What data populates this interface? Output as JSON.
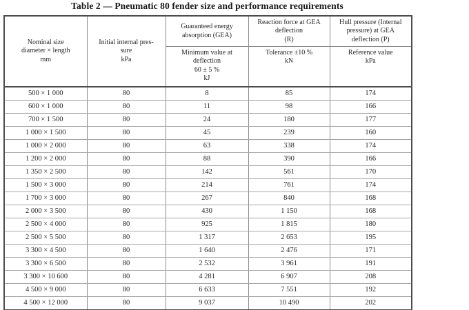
{
  "title": "Table 2 — Pneumatic 80 fender size and performance requirements",
  "table": {
    "header": {
      "nominal_size": "Nominal size\ndiameter × length\nmm",
      "initial_pressure": "Initial internal pres-\nsure\nkPa",
      "gea_group": "Guaranteed energy\nabsorption (GEA)",
      "gea_sub": "Minimum value at\ndeflection\n60 ± 5 %\nkJ",
      "reaction_group": "Reaction force at GEA\ndeflection\n(R)",
      "reaction_sub": "Tolerance ±10 %\nkN",
      "hull_group": "Hull pressure (Internal\npressure) at GEA\ndeflection (P)",
      "hull_sub": "Reference value\nkPa"
    },
    "rows": [
      [
        "500 × 1 000",
        "80",
        "8",
        "85",
        "174"
      ],
      [
        "600 × 1 000",
        "80",
        "11",
        "98",
        "166"
      ],
      [
        "700 × 1 500",
        "80",
        "24",
        "180",
        "177"
      ],
      [
        "1 000 × 1 500",
        "80",
        "45",
        "239",
        "160"
      ],
      [
        "1 000 × 2 000",
        "80",
        "63",
        "338",
        "174"
      ],
      [
        "1 200 × 2 000",
        "80",
        "88",
        "390",
        "166"
      ],
      [
        "1 350 × 2 500",
        "80",
        "142",
        "561",
        "170"
      ],
      [
        "1 500 × 3 000",
        "80",
        "214",
        "761",
        "174"
      ],
      [
        "1 700 × 3 000",
        "80",
        "267",
        "840",
        "168"
      ],
      [
        "2 000 × 3 500",
        "80",
        "430",
        "1 150",
        "168"
      ],
      [
        "2 500 × 4 000",
        "80",
        "925",
        "1 815",
        "180"
      ],
      [
        "2 500 × 5 500",
        "80",
        "1 317",
        "2 653",
        "195"
      ],
      [
        "3 300 × 4 500",
        "80",
        "1 640",
        "2 476",
        "171"
      ],
      [
        "3 300 × 6 500",
        "80",
        "2 532",
        "3 961",
        "191"
      ],
      [
        "3 300 × 10 600",
        "80",
        "4 281",
        "6 907",
        "208"
      ],
      [
        "4 500 × 9 000",
        "80",
        "6 633",
        "7 551",
        "192"
      ],
      [
        "4 500 × 12 000",
        "80",
        "9 037",
        "10 490",
        "202"
      ]
    ]
  }
}
